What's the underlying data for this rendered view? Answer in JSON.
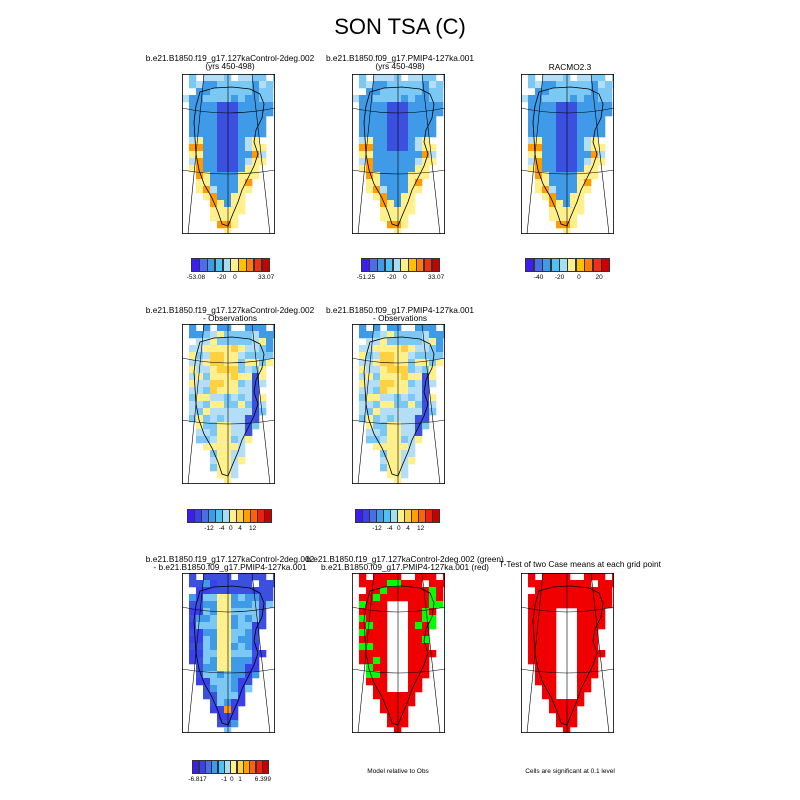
{
  "title": "SON TSA (C)",
  "panels": [
    {
      "id": "ctl",
      "title_lines": [
        "b.e21.B1850.f19_g17.127kaControl-2deg.002",
        "(yrs 450-498)"
      ],
      "style": "abs-ctl"
    },
    {
      "id": "pmip",
      "title_lines": [
        "b.e21.B1850.f09_g17.PMIP4-127ka.001",
        "(yrs 450-498)"
      ],
      "style": "abs-pmip"
    },
    {
      "id": "racmo",
      "title_lines": [
        "RACMO2.3"
      ],
      "style": "abs-racmo"
    },
    {
      "id": "ctl-obs",
      "title_lines": [
        "b.e21.B1850.f19_g17.127kaControl-2deg.002",
        "- Observations"
      ],
      "style": "bias-ctl"
    },
    {
      "id": "pmip-obs",
      "title_lines": [
        "b.e21.B1850.f09_g17.PMIP4-127ka.001",
        "- Observations"
      ],
      "style": "bias-pmip"
    },
    {
      "id": "diff",
      "title_lines": [
        "b.e21.B1850.f19_g17.127kaControl-2deg.002",
        "- b.e21.B1850.f09_g17.PMIP4-127ka.001"
      ],
      "style": "diff"
    },
    {
      "id": "relobs",
      "title_lines": [
        "b.e21.B1850.f19_g17.127kaControl-2deg.002 (green)",
        "b.e21.B1850.f09_g17.PMIP4-127ka.001 (red)"
      ],
      "style": "relobs"
    },
    {
      "id": "ttest",
      "title_lines": [
        "T-Test of two Case means at each grid point"
      ],
      "style": "ttest"
    }
  ],
  "colorbars": [
    {
      "id": "cb-ctl",
      "colors": [
        "#3c1ef0",
        "#4a6ee8",
        "#3f9be8",
        "#4fc2f5",
        "#a4def5",
        "#fff08c",
        "#ffc000",
        "#ff7a10",
        "#f03010",
        "#c80000"
      ],
      "labels": [
        "-53.08",
        "-20",
        "0",
        "33.07"
      ],
      "label_pos": [
        0.05,
        0.38,
        0.55,
        0.95
      ]
    },
    {
      "id": "cb-pmip",
      "colors": [
        "#3c1ef0",
        "#4a6ee8",
        "#3f9be8",
        "#4fc2f5",
        "#a4def5",
        "#fff08c",
        "#ffc000",
        "#ff7a10",
        "#f03010",
        "#c80000"
      ],
      "labels": [
        "-51.25",
        "-20",
        "0",
        "33.07"
      ],
      "label_pos": [
        0.05,
        0.38,
        0.55,
        0.95
      ]
    },
    {
      "id": "cb-racmo",
      "colors": [
        "#3c1ef0",
        "#4a6ee8",
        "#3f9be8",
        "#4fc2f5",
        "#a4def5",
        "#fff08c",
        "#ffc000",
        "#ff7a10",
        "#f03010",
        "#c80000"
      ],
      "labels": [
        "-40",
        "-20",
        "0",
        "20"
      ],
      "label_pos": [
        0.15,
        0.4,
        0.63,
        0.87
      ]
    },
    {
      "id": "cb-bias1",
      "colors": [
        "#3c1ef0",
        "#3a40ee",
        "#4a6ee8",
        "#3f9be8",
        "#4fc2f5",
        "#a4def5",
        "#fff08c",
        "#ffd040",
        "#ffa000",
        "#ff6010",
        "#f02010",
        "#c80000"
      ],
      "labels": [
        "-12",
        "-4",
        "0",
        "4",
        "12"
      ],
      "label_pos": [
        0.25,
        0.4,
        0.51,
        0.62,
        0.77
      ]
    },
    {
      "id": "cb-bias2",
      "colors": [
        "#3c1ef0",
        "#3a40ee",
        "#4a6ee8",
        "#3f9be8",
        "#4fc2f5",
        "#a4def5",
        "#fff08c",
        "#ffd040",
        "#ffa000",
        "#ff6010",
        "#f02010",
        "#c80000"
      ],
      "labels": [
        "-12",
        "-4",
        "0",
        "4",
        "12"
      ],
      "label_pos": [
        0.25,
        0.4,
        0.51,
        0.62,
        0.77
      ]
    },
    {
      "id": "cb-diff",
      "colors": [
        "#3c1ef0",
        "#3a40ee",
        "#4a6ee8",
        "#3f9be8",
        "#4fc2f5",
        "#a4def5",
        "#fff08c",
        "#ffd040",
        "#ffa000",
        "#ff6010",
        "#f02010",
        "#c80000"
      ],
      "labels": [
        "-6.817",
        "-1",
        "0",
        "1",
        "6.399"
      ],
      "label_pos": [
        0.06,
        0.41,
        0.51,
        0.62,
        0.92
      ]
    }
  ],
  "notes": {
    "relobs": "Model relative to Obs",
    "ttest": "Cells are significant at 0.1 level"
  },
  "colors": {
    "deep_blue": "#3c50e0",
    "mid_blue": "#3f9be8",
    "light_blue": "#7cc8f5",
    "pale_blue": "#b4def5",
    "yellow": "#fff08c",
    "orange": "#ff9a00",
    "red": "#f00000",
    "green": "#00ff00",
    "outline": "#000000"
  },
  "chart_data": {
    "type": "heatmap",
    "title": "SON TSA (C)",
    "variable": "TSA",
    "season": "SON",
    "units": "C",
    "ranges": {
      "b.e21.B1850.f19_g17.127kaControl-2deg.002": [
        -53.08,
        33.07
      ],
      "b.e21.B1850.f09_g17.PMIP4-127ka.001": [
        -51.25,
        33.07
      ],
      "RACMO2.3": [
        -40,
        20
      ],
      "difference": [
        -6.817,
        6.399
      ]
    }
  }
}
